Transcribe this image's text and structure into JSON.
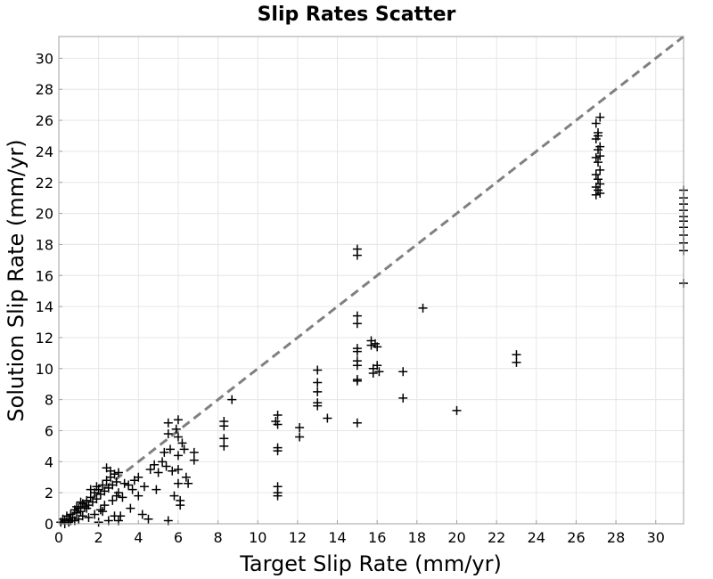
{
  "chart_data": {
    "type": "scatter",
    "title": "Slip Rates Scatter",
    "xlabel": "Target Slip Rate (mm/yr)",
    "ylabel": "Solution Slip Rate (mm/yr)",
    "xlim": [
      0,
      31.4
    ],
    "ylim": [
      0,
      31.4
    ],
    "grid": true,
    "x_ticks": [
      0,
      2,
      4,
      6,
      8,
      10,
      12,
      14,
      16,
      18,
      20,
      22,
      24,
      26,
      28,
      30
    ],
    "y_ticks": [
      0,
      2,
      4,
      6,
      8,
      10,
      12,
      14,
      16,
      18,
      20,
      22,
      24,
      26,
      28,
      30
    ],
    "marker": "plus",
    "marker_color": "#000000",
    "reference_line": {
      "style": "dashed",
      "color": "#808080",
      "from": [
        0,
        0
      ],
      "to": [
        31.4,
        31.4
      ]
    },
    "series": [
      {
        "points": [
          [
            0.1,
            0.1
          ],
          [
            0.2,
            0.3
          ],
          [
            0.3,
            0.2
          ],
          [
            0.4,
            0.5
          ],
          [
            0.5,
            0.3
          ],
          [
            0.6,
            0.6
          ],
          [
            0.7,
            0.4
          ],
          [
            0.8,
            0.9
          ],
          [
            0.9,
            0.7
          ],
          [
            1.0,
            1.0
          ],
          [
            1.1,
            0.8
          ],
          [
            1.2,
            1.3
          ],
          [
            1.3,
            1.1
          ],
          [
            1.4,
            1.5
          ],
          [
            1.5,
            1.2
          ],
          [
            1.6,
            1.7
          ],
          [
            1.7,
            1.4
          ],
          [
            1.8,
            2.0
          ],
          [
            1.9,
            1.6
          ],
          [
            2.0,
            2.2
          ],
          [
            2.1,
            1.9
          ],
          [
            2.2,
            2.5
          ],
          [
            2.3,
            2.1
          ],
          [
            2.4,
            2.8
          ],
          [
            2.5,
            2.3
          ],
          [
            2.6,
            3.0
          ],
          [
            2.7,
            2.5
          ],
          [
            2.8,
            3.2
          ],
          [
            2.9,
            2.7
          ],
          [
            3.0,
            3.3
          ],
          [
            0.3,
            0.0
          ],
          [
            0.5,
            0.1
          ],
          [
            0.8,
            0.2
          ],
          [
            1.0,
            0.3
          ],
          [
            1.2,
            0.5
          ],
          [
            1.5,
            0.4
          ],
          [
            1.8,
            0.6
          ],
          [
            2.0,
            0.1
          ],
          [
            2.2,
            0.8
          ],
          [
            2.5,
            0.2
          ],
          [
            2.8,
            0.5
          ],
          [
            3.0,
            0.2
          ],
          [
            1.6,
            2.2
          ],
          [
            1.9,
            2.4
          ],
          [
            2.4,
            3.6
          ],
          [
            2.6,
            3.4
          ],
          [
            2.1,
            0.9
          ],
          [
            2.3,
            1.2
          ],
          [
            1.4,
            1.0
          ],
          [
            1.1,
            1.4
          ],
          [
            0.9,
            1.1
          ],
          [
            0.6,
            0.2
          ],
          [
            2.7,
            1.5
          ],
          [
            2.9,
            1.8
          ],
          [
            3.0,
            2.0
          ],
          [
            3.1,
            0.5
          ],
          [
            3.2,
            1.7
          ],
          [
            3.3,
            2.6
          ],
          [
            3.5,
            2.5
          ],
          [
            3.6,
            1.0
          ],
          [
            3.7,
            2.2
          ],
          [
            3.8,
            2.8
          ],
          [
            4.0,
            3.0
          ],
          [
            4.0,
            1.8
          ],
          [
            4.2,
            0.6
          ],
          [
            4.3,
            2.4
          ],
          [
            4.5,
            0.3
          ],
          [
            4.6,
            3.5
          ],
          [
            4.8,
            3.8
          ],
          [
            4.9,
            2.2
          ],
          [
            5.0,
            3.3
          ],
          [
            5.2,
            4.0
          ],
          [
            5.3,
            4.6
          ],
          [
            5.4,
            3.7
          ],
          [
            5.5,
            5.8
          ],
          [
            5.5,
            6.5
          ],
          [
            5.6,
            4.8
          ],
          [
            5.5,
            0.2
          ],
          [
            5.7,
            3.4
          ],
          [
            5.8,
            1.8
          ],
          [
            5.9,
            6.1
          ],
          [
            6.0,
            6.7
          ],
          [
            6.0,
            5.6
          ],
          [
            6.0,
            4.4
          ],
          [
            6.0,
            3.5
          ],
          [
            6.0,
            2.6
          ],
          [
            6.1,
            1.5
          ],
          [
            6.2,
            5.2
          ],
          [
            6.3,
            4.8
          ],
          [
            6.4,
            3.0
          ],
          [
            6.5,
            2.6
          ],
          [
            6.8,
            4.6
          ],
          [
            6.8,
            4.1
          ],
          [
            6.1,
            1.2
          ],
          [
            8.3,
            6.6
          ],
          [
            8.3,
            6.3
          ],
          [
            8.3,
            5.5
          ],
          [
            8.3,
            5.0
          ],
          [
            8.7,
            8.0
          ],
          [
            10.9,
            6.6
          ],
          [
            11.0,
            7.0
          ],
          [
            11.0,
            6.4
          ],
          [
            11.0,
            4.9
          ],
          [
            11.0,
            4.7
          ],
          [
            11.0,
            2.4
          ],
          [
            11.0,
            2.0
          ],
          [
            11.0,
            1.8
          ],
          [
            12.1,
            6.2
          ],
          [
            12.1,
            5.6
          ],
          [
            13.0,
            9.9
          ],
          [
            13.0,
            9.1
          ],
          [
            13.0,
            8.5
          ],
          [
            13.0,
            7.8
          ],
          [
            13.0,
            7.6
          ],
          [
            13.5,
            6.8
          ],
          [
            15.0,
            17.7
          ],
          [
            15.0,
            17.3
          ],
          [
            15.0,
            13.4
          ],
          [
            15.0,
            12.9
          ],
          [
            15.0,
            11.3
          ],
          [
            15.0,
            11.1
          ],
          [
            15.0,
            10.5
          ],
          [
            15.0,
            10.2
          ],
          [
            15.0,
            9.3
          ],
          [
            15.0,
            9.2
          ],
          [
            15.0,
            6.5
          ],
          [
            15.7,
            11.8
          ],
          [
            15.7,
            11.5
          ],
          [
            15.8,
            10.0
          ],
          [
            15.8,
            9.7
          ],
          [
            15.9,
            11.6
          ],
          [
            16.0,
            11.4
          ],
          [
            16.0,
            10.2
          ],
          [
            16.1,
            9.8
          ],
          [
            17.3,
            9.8
          ],
          [
            17.3,
            8.1
          ],
          [
            18.3,
            13.9
          ],
          [
            20.0,
            7.3
          ],
          [
            23.0,
            10.9
          ],
          [
            23.0,
            10.4
          ],
          [
            27.0,
            25.8
          ],
          [
            27.1,
            25.2
          ],
          [
            27.2,
            26.2
          ],
          [
            27.0,
            24.8
          ],
          [
            27.1,
            24.1
          ],
          [
            27.2,
            23.7
          ],
          [
            27.0,
            23.6
          ],
          [
            27.1,
            23.3
          ],
          [
            27.2,
            22.8
          ],
          [
            27.0,
            22.5
          ],
          [
            27.1,
            22.2
          ],
          [
            27.2,
            21.9
          ],
          [
            27.0,
            21.7
          ],
          [
            27.1,
            21.5
          ],
          [
            27.2,
            21.3
          ],
          [
            27.0,
            21.2
          ],
          [
            27.1,
            25.0
          ],
          [
            27.2,
            24.3
          ],
          [
            31.4,
            21.5
          ],
          [
            31.4,
            21.0
          ],
          [
            31.4,
            20.6
          ],
          [
            31.4,
            20.2
          ],
          [
            31.4,
            19.8
          ],
          [
            31.4,
            19.5
          ],
          [
            31.4,
            19.1
          ],
          [
            31.4,
            18.6
          ],
          [
            31.4,
            18.1
          ],
          [
            31.4,
            17.6
          ],
          [
            31.4,
            15.5
          ]
        ]
      }
    ]
  }
}
